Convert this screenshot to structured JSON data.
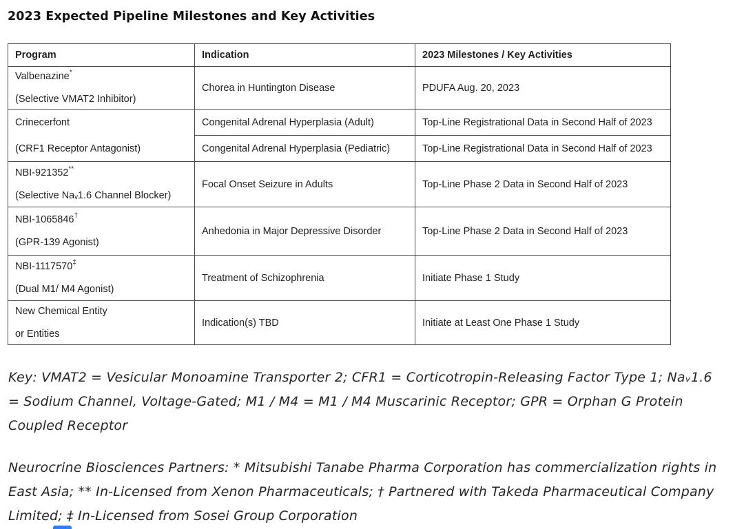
{
  "page": {
    "title": "2023 Expected Pipeline Milestones and Key Activities"
  },
  "table": {
    "headers": [
      "Program",
      "Indication",
      "2023 Milestones / Key Activities"
    ],
    "programs": [
      {
        "name": "Valbenazine",
        "marker": "*",
        "detail": "(Selective VMAT2 Inhibitor)",
        "rows": [
          {
            "indication": "Chorea in Huntington Disease",
            "milestone": "PDUFA Aug. 20, 2023"
          }
        ]
      },
      {
        "name": "Crinecerfont",
        "marker": "",
        "detail": "(CRF1 Receptor Antagonist)",
        "rows": [
          {
            "indication": "Congenital Adrenal Hyperplasia (Adult)",
            "milestone": "Top-Line Registrational Data in Second Half of 2023"
          },
          {
            "indication": "Congenital Adrenal Hyperplasia (Pediatric)",
            "milestone": "Top-Line Registrational Data in Second Half of 2023"
          }
        ]
      },
      {
        "name": "NBI-921352",
        "marker": "**",
        "detail": "(Selective Naᵥ1.6 Channel Blocker)",
        "rows": [
          {
            "indication": "Focal Onset Seizure in Adults",
            "milestone": "Top-Line Phase 2 Data in Second Half of 2023"
          }
        ]
      },
      {
        "name": "NBI-1065846",
        "marker": "†",
        "detail": "(GPR-139 Agonist)",
        "rows": [
          {
            "indication": "Anhedonia in Major Depressive Disorder",
            "milestone": "Top-Line Phase 2 Data in Second Half of 2023"
          }
        ]
      },
      {
        "name": "NBI-1117570",
        "marker": "‡",
        "detail": "(Dual M1/ M4 Agonist)",
        "rows": [
          {
            "indication": "Treatment of Schizophrenia",
            "milestone": "Initiate Phase 1 Study"
          }
        ]
      },
      {
        "name": "New Chemical Entity",
        "marker": "",
        "detail": "or Entities",
        "rows": [
          {
            "indication": "Indication(s) TBD",
            "milestone": "Initiate at Least One Phase 1 Study"
          }
        ]
      }
    ]
  },
  "footnotes": {
    "key": "Key: VMAT2 = Vesicular Monoamine Transporter 2; CFR1 = Corticotropin-Releasing Factor Type 1; Naᵥ1.6 = Sodium Channel, Voltage-Gated; M1 / M4 = M1 / M4 Muscarinic Receptor; GPR = Orphan G Protein Coupled Receptor",
    "partners": "Neurocrine Biosciences Partners: * Mitsubishi Tanabe Pharma Corporation has commercialization rights in East Asia; ** In-Licensed from Xenon Pharmaceuticals; † Partnered with Takeda Pharmaceutical Company Limited; ‡ In-Licensed from Sosei Group Corporation"
  }
}
